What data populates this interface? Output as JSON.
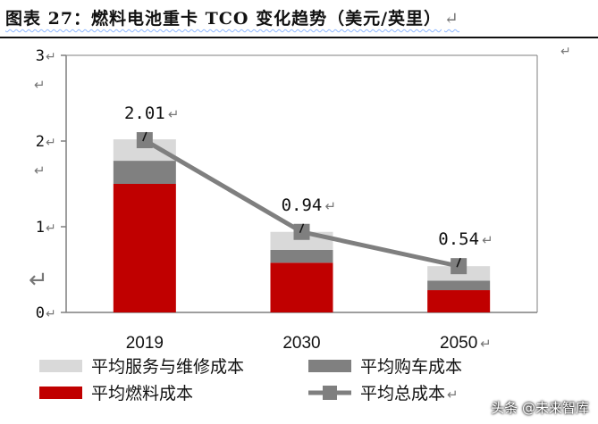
{
  "title": "图表 27：燃料电池重卡 TCO 变化趋势（美元/英里）",
  "paragraph_mark": "↵",
  "watermark": "头条 @未来智库",
  "colors": {
    "service": "#d9d9d9",
    "purchase": "#808080",
    "fuel": "#c00000",
    "total": "#7f7f7f",
    "axis": "#7f7f7f"
  },
  "chart_data": {
    "type": "bar",
    "stacked": true,
    "title": "燃料电池重卡 TCO 变化趋势（美元/英里）",
    "categories": [
      "2019",
      "2030",
      "2050"
    ],
    "ylim": [
      0,
      3
    ],
    "yticks": [
      0,
      1,
      2,
      3
    ],
    "series": [
      {
        "name": "平均燃料成本",
        "values": [
          1.5,
          0.58,
          0.26
        ]
      },
      {
        "name": "平均购车成本",
        "values": [
          0.27,
          0.15,
          0.11
        ]
      },
      {
        "name": "平均服务与维修成本",
        "values": [
          0.25,
          0.21,
          0.17
        ]
      }
    ],
    "line_series": {
      "name": "平均总成本",
      "values": [
        2.01,
        0.94,
        0.54
      ]
    },
    "data_labels": [
      "2.01",
      "0.94",
      "0.54"
    ],
    "legend": [
      "平均服务与维修成本",
      "平均购车成本",
      "平均燃料成本",
      "平均总成本"
    ]
  }
}
